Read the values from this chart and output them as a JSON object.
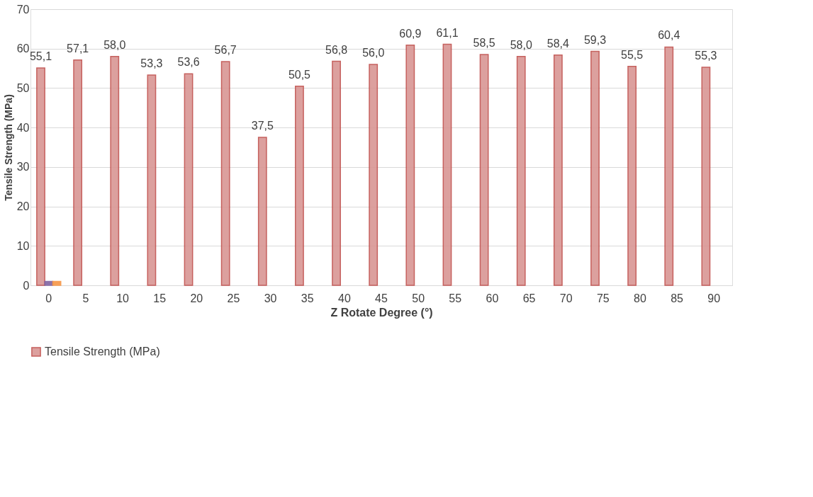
{
  "chart_data": {
    "type": "bar",
    "xlabel": "Z Rotate Degree (°)",
    "ylabel": "Tensile Strength (MPa)",
    "categories": [
      "0",
      "5",
      "10",
      "15",
      "20",
      "25",
      "30",
      "35",
      "40",
      "45",
      "50",
      "55",
      "60",
      "65",
      "70",
      "75",
      "80",
      "85",
      "90"
    ],
    "series": [
      {
        "name": "Tensile Strength (MPa)",
        "color": "#d99694",
        "values": [
          55.1,
          57.1,
          58.0,
          53.3,
          53.6,
          56.7,
          37.5,
          50.5,
          56.8,
          56.0,
          60.9,
          61.1,
          58.5,
          58.0,
          58.4,
          59.3,
          55.5,
          60.4,
          55.3
        ],
        "value_labels": [
          "55,1",
          "57,1",
          "58,0",
          "53,3",
          "53,6",
          "56,7",
          "37,5",
          "50,5",
          "56,8",
          "56,0",
          "60,9",
          "61,1",
          "58,5",
          "58,0",
          "58,4",
          "59,3",
          "55,5",
          "60,4",
          "55,3"
        ]
      },
      {
        "color": "#8064a2",
        "values": [
          1,
          null,
          null,
          null,
          null,
          null,
          null,
          null,
          null,
          null,
          null,
          null,
          null,
          null,
          null,
          null,
          null,
          null,
          null
        ]
      },
      {
        "color": "#f79646",
        "values": [
          1,
          null,
          null,
          null,
          null,
          null,
          null,
          null,
          null,
          null,
          null,
          null,
          null,
          null,
          null,
          null,
          null,
          null,
          null
        ]
      }
    ],
    "ylim": [
      0,
      70
    ],
    "yticks": [
      0,
      10,
      20,
      30,
      40,
      50,
      60,
      70
    ],
    "grid": "y",
    "legend": "bottom"
  }
}
